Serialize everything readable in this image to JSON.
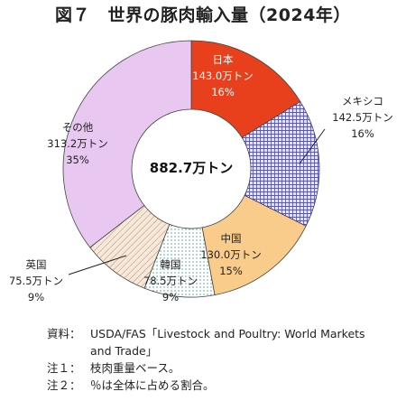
{
  "title": "図７　世界の豚肉輸入量（2024年）",
  "center_label": "882.7万トン",
  "chart_data": {
    "type": "pie",
    "variant": "donut",
    "title": "図７　世界の豚肉輸入量（2024年）",
    "total": "882.7万トン",
    "unit": "万トン",
    "slices": [
      {
        "name": "日本",
        "value": 143.0,
        "value_label": "143.0万トン",
        "share": 16,
        "share_label": "16%",
        "color": "#e8401c",
        "pattern": "solid"
      },
      {
        "name": "メキシコ",
        "value": 142.5,
        "value_label": "142.5万トン",
        "share": 16,
        "share_label": "16%",
        "color": "#5a5ab4",
        "pattern": "grid"
      },
      {
        "name": "中国",
        "value": 130.0,
        "value_label": "130.0万トン",
        "share": 15,
        "share_label": "15%",
        "color": "#f9cc8c",
        "pattern": "solid"
      },
      {
        "name": "韓国",
        "value": 78.5,
        "value_label": "78.5万トン",
        "share": 9,
        "share_label": "9%",
        "color": "#3a9a9a",
        "pattern": "dots"
      },
      {
        "name": "英国",
        "value": 75.5,
        "value_label": "75.5万トン",
        "share": 9,
        "share_label": "9%",
        "color": "#b88c5c",
        "pattern": "diagonal"
      },
      {
        "name": "その他",
        "value": 313.2,
        "value_label": "313.2万トン",
        "share": 35,
        "share_label": "35%",
        "color": "#e8c8f0",
        "pattern": "solid"
      }
    ]
  },
  "notes": [
    {
      "key": "資料：",
      "lines": [
        "USDA/FAS「Livestock and Poultry: World Markets",
        "and Trade」"
      ]
    },
    {
      "key": "注１：",
      "lines": [
        "枝肉重量ベース。"
      ]
    },
    {
      "key": "注２：",
      "lines": [
        "％は全体に占める割合。"
      ]
    }
  ]
}
